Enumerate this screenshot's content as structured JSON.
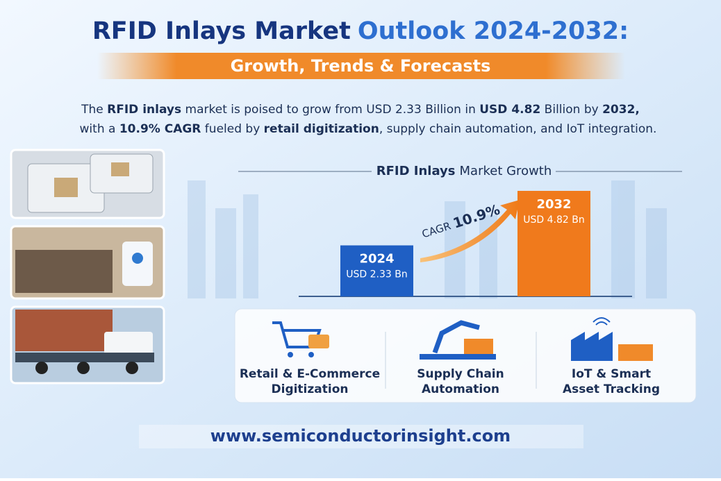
{
  "header": {
    "title": [
      "RFID Inlays Market",
      "Outlook 2024-2032:"
    ],
    "subtitle": "Growth, Trends & Forecasts"
  },
  "intro": [
    [
      {
        "text": "The ",
        "bold": false
      },
      {
        "text": "RFID inlays",
        "bold": true
      },
      {
        "text": " market is poised to grow from USD 2.33 Billion in ",
        "bold": false
      },
      {
        "text": "USD 4.82",
        "bold": true
      },
      {
        "text": " Billion by ",
        "bold": false
      },
      {
        "text": "2032,",
        "bold": true
      }
    ],
    [
      {
        "text": "with a ",
        "bold": false
      },
      {
        "text": "10.9% CAGR",
        "bold": true
      },
      {
        "text": " fueled by ",
        "bold": false
      },
      {
        "text": "retail digitization",
        "bold": true
      },
      {
        "text": ", supply chain automation, and IoT integration.",
        "bold": false
      }
    ]
  ],
  "chart_data": {
    "type": "bar",
    "title": [
      "RFID Inlays",
      "Market Growth"
    ],
    "categories": [
      "2024",
      "2032"
    ],
    "values": [
      2.33,
      4.82
    ],
    "value_labels": [
      "USD 2.33 Bn",
      "USD 4.82 Bn"
    ],
    "colors": [
      "#1f5fc4",
      "#f07a1c"
    ],
    "annotation": [
      "CAGR",
      "10.9%"
    ]
  },
  "features": [
    {
      "label": [
        "Retail & E-Commerce",
        "Digitization"
      ]
    },
    {
      "label": [
        "Supply Chain",
        "Automation"
      ]
    },
    {
      "label": [
        "IoT & Smart",
        "Asset Tracking"
      ]
    }
  ],
  "footer": {
    "url": "www.semiconductorinsight.com"
  }
}
